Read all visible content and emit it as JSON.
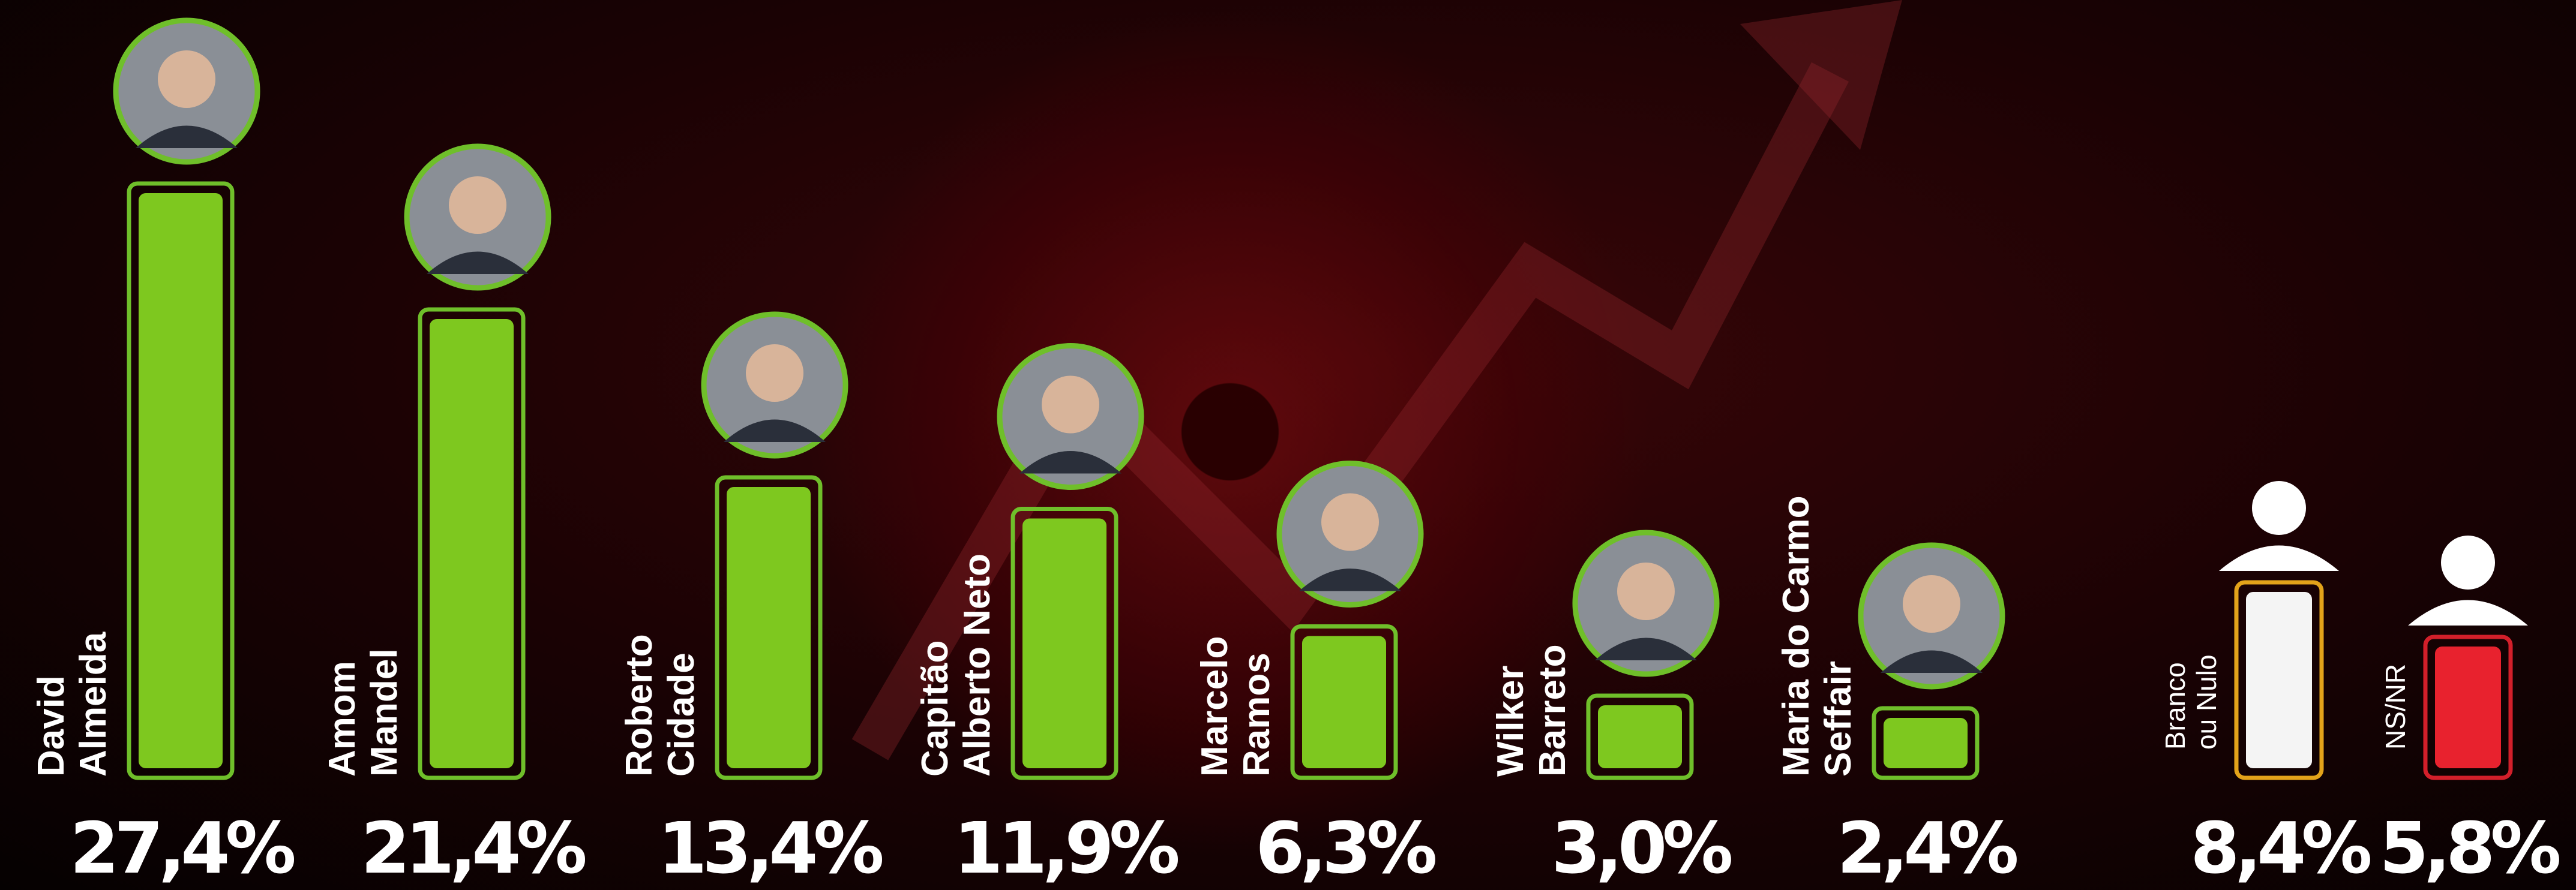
{
  "chart_data": {
    "type": "bar",
    "categories": [
      "David\nAlmeida",
      "Amom\nMandel",
      "Roberto\nCidade",
      "Capitão\nAlberto Neto",
      "Marcelo\nRamos",
      "Wilker\nBarreto",
      "Maria do Carmo\nSeffair",
      "Branco\nou Nulo",
      "NS/NR"
    ],
    "values": [
      27.4,
      21.4,
      13.4,
      11.9,
      6.3,
      3.0,
      2.4,
      8.4,
      5.8
    ],
    "value_labels": [
      "27,4%",
      "21,4%",
      "13,4%",
      "11,9%",
      "6,3%",
      "3,0%",
      "2,4%",
      "8,4%",
      "5,8%"
    ],
    "colors": [
      "#7ec81f",
      "#7ec81f",
      "#7ec81f",
      "#7ec81f",
      "#7ec81f",
      "#7ec81f",
      "#7ec81f",
      "#f4f4f4",
      "#e8222e"
    ],
    "border_colors": [
      "#6fbf2a",
      "#6fbf2a",
      "#6fbf2a",
      "#6fbf2a",
      "#6fbf2a",
      "#6fbf2a",
      "#6fbf2a",
      "#e3a31a",
      "#d21f2a"
    ]
  }
}
